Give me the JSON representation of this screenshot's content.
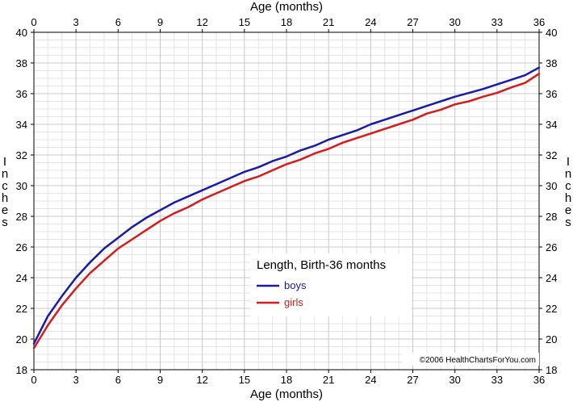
{
  "chart_data": {
    "type": "line",
    "title": "Length, Birth-36 months",
    "xlabel": "Age (months)",
    "ylabel": "Inches",
    "xlim": [
      0,
      36
    ],
    "ylim": [
      18,
      40
    ],
    "x_ticks": [
      0,
      3,
      6,
      9,
      12,
      15,
      18,
      21,
      24,
      27,
      30,
      33,
      36
    ],
    "y_ticks": [
      18,
      20,
      22,
      24,
      26,
      28,
      30,
      32,
      34,
      36,
      38,
      40
    ],
    "grid": true,
    "legend_position": "center-right",
    "series": [
      {
        "name": "boys",
        "color": "#1a1aa6",
        "x": [
          0,
          1,
          2,
          3,
          4,
          5,
          6,
          7,
          8,
          9,
          10,
          11,
          12,
          13,
          14,
          15,
          16,
          17,
          18,
          19,
          20,
          21,
          22,
          23,
          24,
          25,
          26,
          27,
          28,
          29,
          30,
          31,
          32,
          33,
          34,
          35,
          36
        ],
        "y": [
          19.7,
          21.5,
          22.8,
          24.0,
          25.0,
          25.9,
          26.6,
          27.3,
          27.9,
          28.4,
          28.9,
          29.3,
          29.7,
          30.1,
          30.5,
          30.9,
          31.2,
          31.6,
          31.9,
          32.3,
          32.6,
          33.0,
          33.3,
          33.6,
          34.0,
          34.3,
          34.6,
          34.9,
          35.2,
          35.5,
          35.8,
          36.05,
          36.3,
          36.6,
          36.9,
          37.2,
          37.7
        ]
      },
      {
        "name": "girls",
        "color": "#d41c1c",
        "x": [
          0,
          1,
          2,
          3,
          4,
          5,
          6,
          7,
          8,
          9,
          10,
          11,
          12,
          13,
          14,
          15,
          16,
          17,
          18,
          19,
          20,
          21,
          22,
          23,
          24,
          25,
          26,
          27,
          28,
          29,
          30,
          31,
          32,
          33,
          34,
          35,
          36
        ],
        "y": [
          19.4,
          20.9,
          22.2,
          23.3,
          24.3,
          25.1,
          25.9,
          26.5,
          27.1,
          27.7,
          28.2,
          28.6,
          29.1,
          29.5,
          29.9,
          30.3,
          30.6,
          31.0,
          31.4,
          31.7,
          32.1,
          32.4,
          32.8,
          33.1,
          33.4,
          33.7,
          34.0,
          34.3,
          34.7,
          34.95,
          35.3,
          35.5,
          35.8,
          36.05,
          36.4,
          36.7,
          37.3
        ]
      }
    ],
    "copyright": "©2006 HealthChartsForYou.com"
  }
}
